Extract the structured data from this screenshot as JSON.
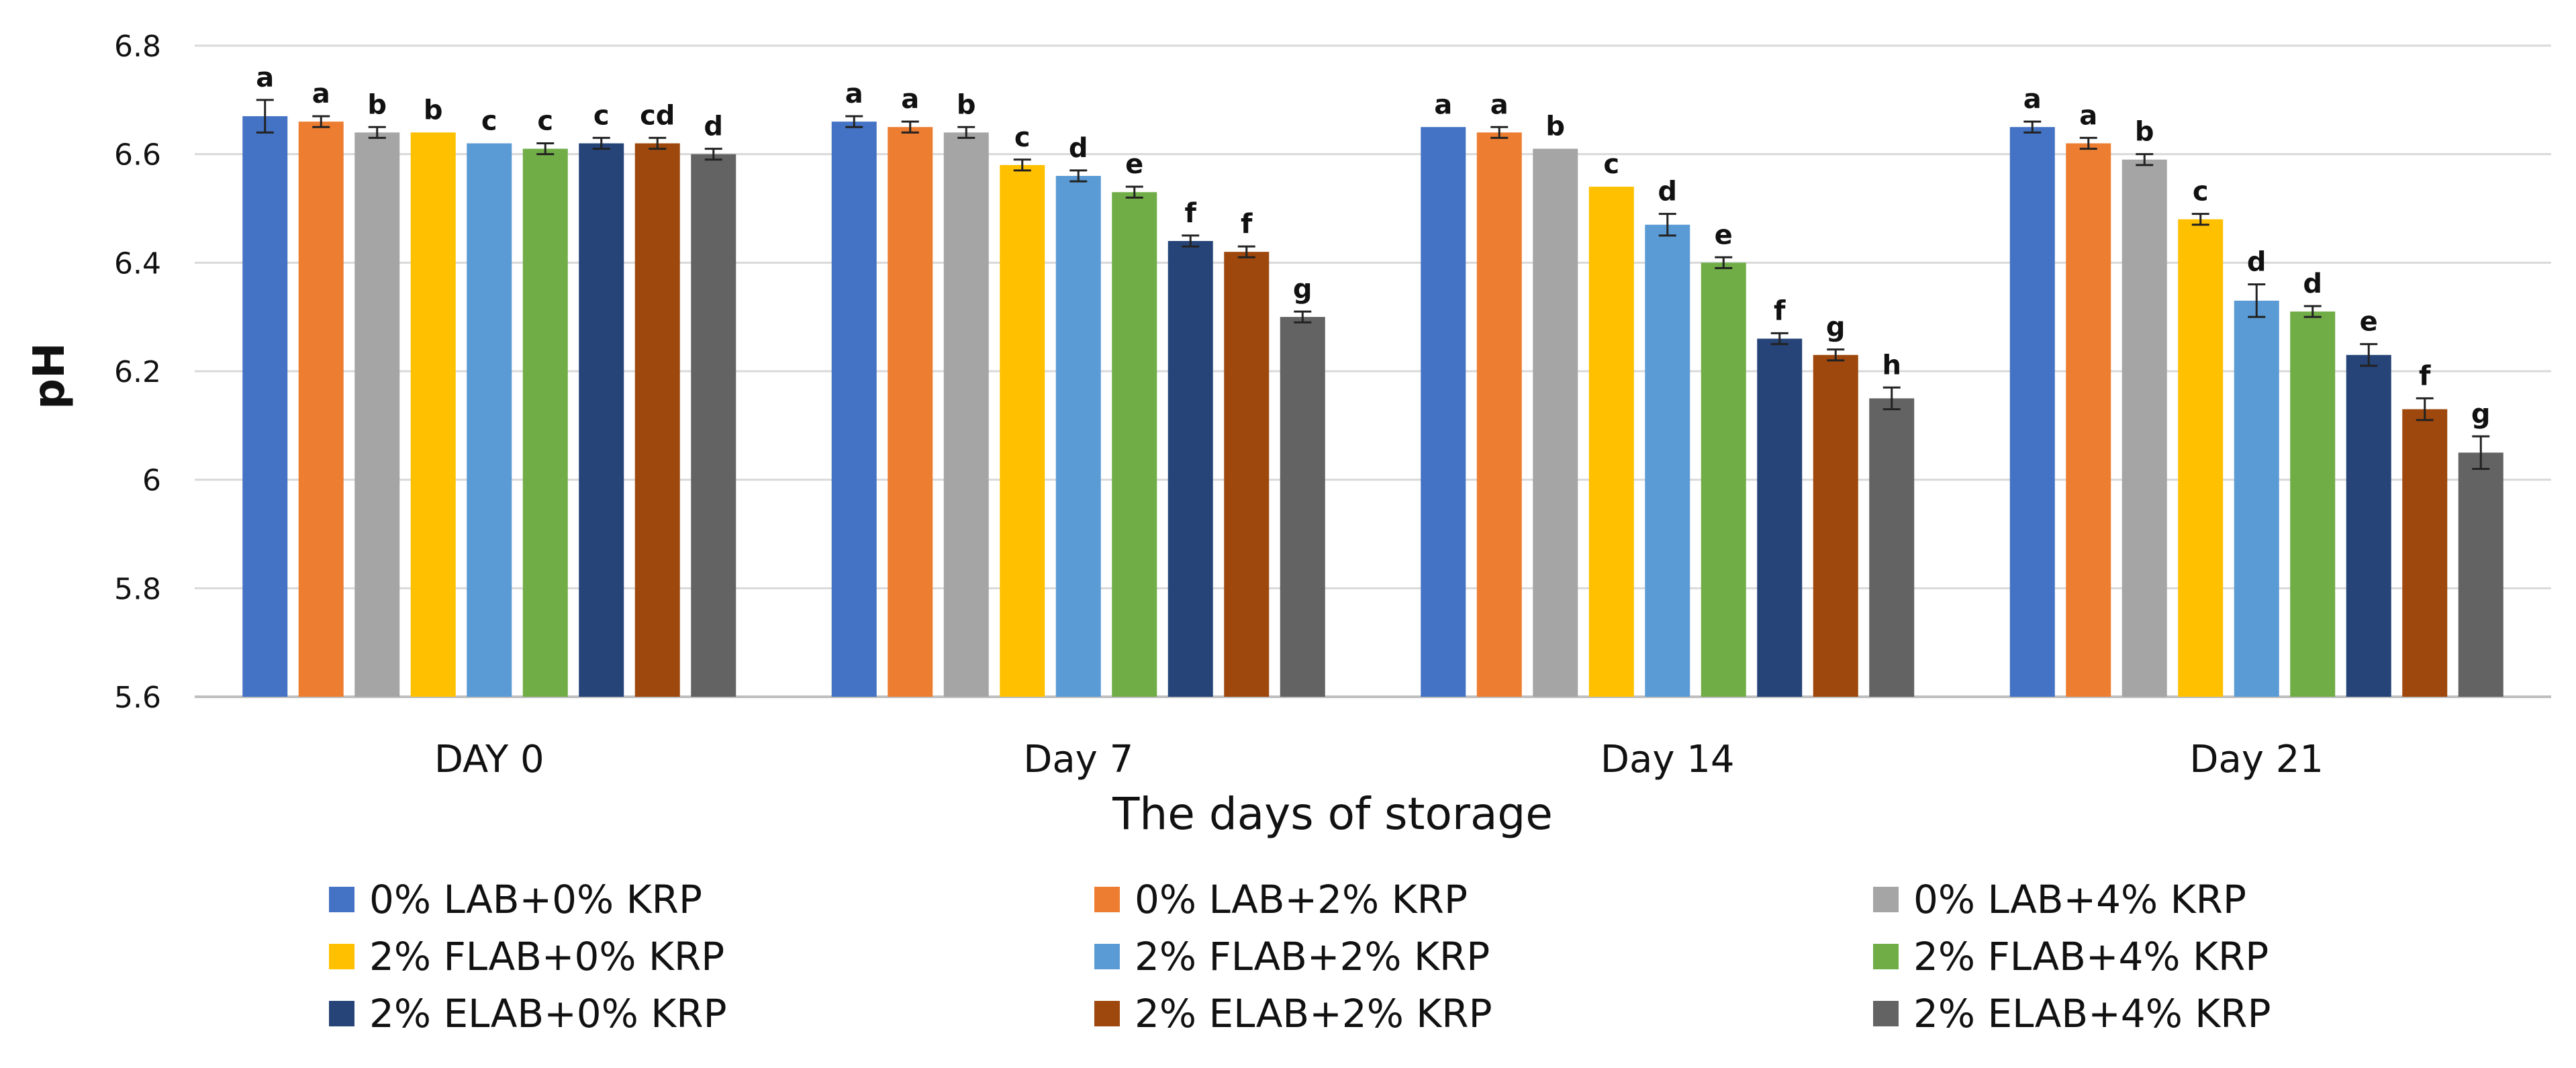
{
  "chart_data": {
    "type": "bar",
    "title": "",
    "xlabel": "The days of storage",
    "ylabel": "pH",
    "ylim": [
      5.6,
      6.8
    ],
    "yticks": [
      5.6,
      5.8,
      6,
      6.2,
      6.4,
      6.6,
      6.8
    ],
    "ytick_labels": [
      "5.6",
      "5.8",
      "6",
      "6.2",
      "6.4",
      "6.6",
      "6.8"
    ],
    "grid": "horizontal",
    "legend_position": "bottom",
    "categories": [
      "DAY 0",
      "Day 7",
      "Day 14",
      "Day 21"
    ],
    "series": [
      {
        "name": "0% LAB+0% KRP",
        "color": "#4472C4",
        "values": [
          6.67,
          6.66,
          6.65,
          6.65
        ],
        "errors": [
          0.03,
          0.01,
          0.0,
          0.01
        ],
        "labels": [
          "a",
          "a",
          "a",
          "a"
        ]
      },
      {
        "name": "0% LAB+2% KRP",
        "color": "#ED7D31",
        "values": [
          6.66,
          6.65,
          6.64,
          6.62
        ],
        "errors": [
          0.01,
          0.01,
          0.01,
          0.01
        ],
        "labels": [
          "a",
          "a",
          "a",
          "a"
        ]
      },
      {
        "name": "0% LAB+4% KRP",
        "color": "#A5A5A5",
        "values": [
          6.64,
          6.64,
          6.61,
          6.59
        ],
        "errors": [
          0.01,
          0.01,
          0.0,
          0.01
        ],
        "labels": [
          "b",
          "b",
          "b",
          "b"
        ]
      },
      {
        "name": "2% FLAB+0% KRP",
        "color": "#FFC000",
        "values": [
          6.64,
          6.58,
          6.54,
          6.48
        ],
        "errors": [
          0.0,
          0.01,
          0.0,
          0.01
        ],
        "labels": [
          "b",
          "c",
          "c",
          "c"
        ]
      },
      {
        "name": "2% FLAB+2% KRP",
        "color": "#5B9BD5",
        "values": [
          6.62,
          6.56,
          6.47,
          6.33
        ],
        "errors": [
          0.0,
          0.01,
          0.02,
          0.03
        ],
        "labels": [
          "c",
          "d",
          "d",
          "d"
        ]
      },
      {
        "name": "2% FLAB+4% KRP",
        "color": "#70AD47",
        "values": [
          6.61,
          6.53,
          6.4,
          6.31
        ],
        "errors": [
          0.01,
          0.01,
          0.01,
          0.01
        ],
        "labels": [
          "c",
          "e",
          "e",
          "d"
        ]
      },
      {
        "name": "2% ELAB+0% KRP",
        "color": "#264478",
        "values": [
          6.62,
          6.44,
          6.26,
          6.23
        ],
        "errors": [
          0.01,
          0.01,
          0.01,
          0.02
        ],
        "labels": [
          "c",
          "f",
          "f",
          "e"
        ]
      },
      {
        "name": "2% ELAB+2% KRP",
        "color": "#9E480E",
        "values": [
          6.62,
          6.42,
          6.23,
          6.13
        ],
        "errors": [
          0.01,
          0.01,
          0.01,
          0.02
        ],
        "labels": [
          "cd",
          "f",
          "g",
          "f"
        ]
      },
      {
        "name": "2% ELAB+4% KRP",
        "color": "#636363",
        "values": [
          6.6,
          6.3,
          6.15,
          6.05
        ],
        "errors": [
          0.01,
          0.01,
          0.02,
          0.03
        ],
        "labels": [
          "d",
          "g",
          "h",
          "g"
        ]
      }
    ]
  }
}
